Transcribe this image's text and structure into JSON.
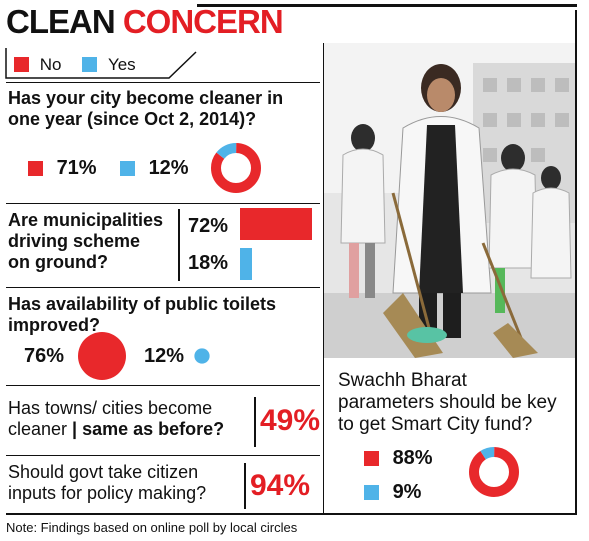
{
  "title": {
    "part1": "CLEAN",
    "part2": "CONCERN"
  },
  "legend": {
    "no_label": "No",
    "yes_label": "Yes"
  },
  "colors": {
    "no": "#e8282b",
    "yes": "#4fb3e8"
  },
  "chart_data": [
    {
      "type": "pie",
      "title": "Has your city become cleaner in one year (since Oct 2, 2014)?",
      "categories": [
        "No",
        "Yes"
      ],
      "values": [
        71,
        12
      ],
      "labels": [
        "71%",
        "12%"
      ]
    },
    {
      "type": "bar",
      "title": "Are municipalities driving scheme on ground?",
      "categories": [
        "No",
        "Yes"
      ],
      "values": [
        72,
        18
      ],
      "labels": [
        "72%",
        "18%"
      ]
    },
    {
      "type": "bubble",
      "title": "Has availability of public toilets improved?",
      "categories": [
        "No",
        "Yes"
      ],
      "values": [
        76,
        12
      ],
      "labels": [
        "76%",
        "12%"
      ]
    },
    {
      "type": "table",
      "title": "Has towns/ cities become cleaner | same as before?",
      "values": [
        49
      ],
      "labels": [
        "49%"
      ]
    },
    {
      "type": "table",
      "title": "Should govt take citizen inputs for policy making?",
      "values": [
        94
      ],
      "labels": [
        "94%"
      ]
    },
    {
      "type": "pie",
      "title": "Swachh Bharat parameters should be key to get Smart City fund?",
      "categories": [
        "No",
        "Yes"
      ],
      "values": [
        88,
        9
      ],
      "labels": [
        "88%",
        "9%"
      ]
    }
  ],
  "q1": {
    "line1": "Has your city become cleaner in",
    "line2": "one year (since Oct 2, 2014)?"
  },
  "q2": {
    "line1": "Are municipalities",
    "line2": "driving scheme",
    "line3": "on ground?"
  },
  "q3": {
    "line1": "Has availability of public toilets",
    "line2": "improved?"
  },
  "q4": {
    "line1": "Has towns/ cities become",
    "line2a": "cleaner ",
    "line2b": "| same as before?"
  },
  "q5": {
    "line1": "Should govt take citizen",
    "line2": "inputs for policy making?"
  },
  "q6": {
    "line1": "Swachh Bharat",
    "line2": "parameters should be key",
    "line3": "to get Smart City fund?"
  },
  "note": "Note: Findings based on online poll by local circles"
}
